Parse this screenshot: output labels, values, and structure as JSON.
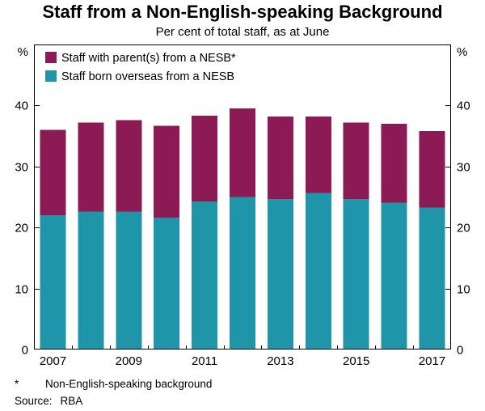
{
  "title": "Staff from a Non-English-speaking Background",
  "subtitle": "Per cent of total staff, as at June",
  "footnote": {
    "marker": "*",
    "text": "Non-English-speaking background",
    "source_label": "Source:",
    "source_value": "RBA"
  },
  "chart_data": {
    "type": "bar",
    "stacked": true,
    "title": "Staff from a Non-English-speaking Background",
    "subtitle": "Per cent of total staff, as at June",
    "axis_unit": "%",
    "categories": [
      "2007",
      "2008",
      "2009",
      "2010",
      "2011",
      "2012",
      "2013",
      "2014",
      "2015",
      "2016",
      "2017"
    ],
    "x_tick_labels": [
      "2007",
      "2009",
      "2011",
      "2013",
      "2015",
      "2017"
    ],
    "series": [
      {
        "name": "Staff born overseas from a NESB",
        "color": "#1E95A9",
        "values": [
          22.0,
          22.6,
          22.6,
          21.6,
          24.3,
          25.0,
          24.7,
          25.7,
          24.7,
          24.1,
          23.3
        ]
      },
      {
        "name": "Staff with parent(s) from a NESB*",
        "color": "#8B1A55",
        "values": [
          14.0,
          14.6,
          15.0,
          15.1,
          14.0,
          14.5,
          13.5,
          12.5,
          12.5,
          12.9,
          12.5
        ]
      }
    ],
    "totals": [
      36.0,
      37.2,
      37.6,
      36.7,
      38.3,
      39.5,
      38.2,
      38.2,
      37.2,
      37.0,
      35.8
    ],
    "legend": [
      {
        "label": "Staff with parent(s) from a NESB*",
        "color": "#8B1A55"
      },
      {
        "label": "Staff born overseas from a NESB",
        "color": "#1E95A9"
      }
    ],
    "legend_position": "top-left",
    "ylim": [
      0,
      50
    ],
    "yticks": [
      0,
      10,
      20,
      30,
      40
    ],
    "grid": false
  }
}
